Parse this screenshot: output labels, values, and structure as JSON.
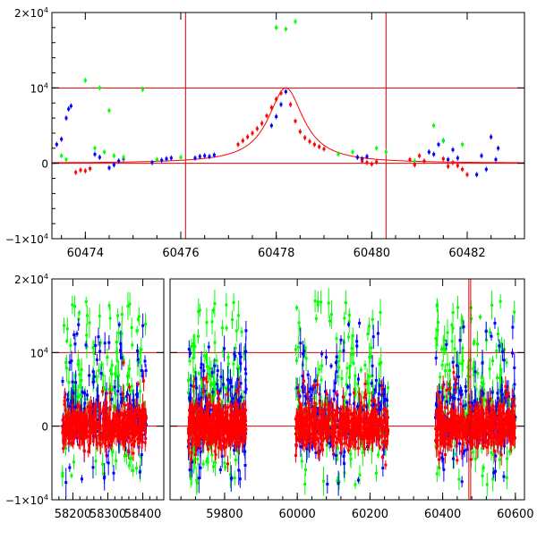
{
  "chart_data": [
    {
      "type": "scatter",
      "title": "",
      "xlabel": "",
      "ylabel": "",
      "xlim": [
        60473.3,
        60483.2
      ],
      "ylim": [
        -10000,
        20000
      ],
      "xtick_values": [
        60474,
        60476,
        60478,
        60480,
        60482
      ],
      "xtick_labels": [
        "60474",
        "60476",
        "60478",
        "60480",
        "60482"
      ],
      "ytick_values": [
        -10000,
        0,
        10000,
        20000
      ],
      "ytick_labels": [
        {
          "base": "−1×10",
          "exp": "4"
        },
        {
          "base": "0",
          "exp": ""
        },
        {
          "base": "10",
          "exp": "4"
        },
        {
          "base": "2×10",
          "exp": "4"
        }
      ],
      "hlines": [
        0,
        10000
      ],
      "vlines": [
        60476.1,
        60480.3
      ],
      "model_curve": {
        "peak_x": 60478.2,
        "peak_y": 10000,
        "halfwidth_days": 0.45,
        "color": "#ff0000"
      },
      "series": [
        {
          "color": "#0000ff",
          "points": [
            [
              60473.4,
              2500
            ],
            [
              60473.5,
              3200
            ],
            [
              60473.6,
              6000
            ],
            [
              60473.65,
              7200
            ],
            [
              60473.7,
              7600
            ],
            [
              60474.2,
              1200
            ],
            [
              60474.3,
              800
            ],
            [
              60474.5,
              -600
            ],
            [
              60474.6,
              -200
            ],
            [
              60474.7,
              300
            ],
            [
              60474.8,
              600
            ],
            [
              60475.4,
              100
            ],
            [
              60475.6,
              400
            ],
            [
              60475.7,
              600
            ],
            [
              60475.8,
              700
            ],
            [
              60476.3,
              700
            ],
            [
              60476.4,
              900
            ],
            [
              60476.5,
              1000
            ],
            [
              60476.6,
              900
            ],
            [
              60476.7,
              1100
            ],
            [
              60477.9,
              5000
            ],
            [
              60478.0,
              6200
            ],
            [
              60478.1,
              7800
            ],
            [
              60478.2,
              9500
            ],
            [
              60479.7,
              800
            ],
            [
              60479.8,
              600
            ],
            [
              60479.9,
              900
            ],
            [
              60481.2,
              1500
            ],
            [
              60481.3,
              1200
            ],
            [
              60481.4,
              2500
            ],
            [
              60481.5,
              3000
            ],
            [
              60481.6,
              500
            ],
            [
              60481.7,
              1800
            ],
            [
              60481.8,
              700
            ],
            [
              60482.2,
              -1500
            ],
            [
              60482.3,
              1000
            ],
            [
              60482.4,
              -800
            ],
            [
              60482.5,
              3500
            ],
            [
              60482.6,
              500
            ],
            [
              60482.65,
              2000
            ]
          ]
        },
        {
          "color": "#00ff00",
          "points": [
            [
              60473.5,
              1000
            ],
            [
              60473.6,
              500
            ],
            [
              60474.0,
              11000
            ],
            [
              60474.2,
              2000
            ],
            [
              60474.3,
              10000
            ],
            [
              60474.4,
              1500
            ],
            [
              60474.5,
              7000
            ],
            [
              60474.6,
              1000
            ],
            [
              60474.8,
              800
            ],
            [
              60475.2,
              9800
            ],
            [
              60475.5,
              500
            ],
            [
              60476.0,
              800
            ],
            [
              60478.0,
              18000
            ],
            [
              60478.2,
              17800
            ],
            [
              60478.4,
              18800
            ],
            [
              60479.3,
              1200
            ],
            [
              60479.6,
              1500
            ],
            [
              60480.1,
              2000
            ],
            [
              60480.3,
              1500
            ],
            [
              60480.9,
              300
            ],
            [
              60481.3,
              5000
            ],
            [
              60481.5,
              3000
            ],
            [
              60481.9,
              2500
            ]
          ]
        },
        {
          "color": "#ff0000",
          "points": [
            [
              60473.8,
              -1200
            ],
            [
              60473.9,
              -900
            ],
            [
              60474.0,
              -1000
            ],
            [
              60474.1,
              -700
            ],
            [
              60477.2,
              2500
            ],
            [
              60477.3,
              3000
            ],
            [
              60477.4,
              3500
            ],
            [
              60477.5,
              4000
            ],
            [
              60477.6,
              4600
            ],
            [
              60477.7,
              5300
            ],
            [
              60477.8,
              6300
            ],
            [
              60477.9,
              7400
            ],
            [
              60478.0,
              8500
            ],
            [
              60478.1,
              9300
            ],
            [
              60478.3,
              7800
            ],
            [
              60478.4,
              5600
            ],
            [
              60478.5,
              4200
            ],
            [
              60478.6,
              3400
            ],
            [
              60478.7,
              2900
            ],
            [
              60478.8,
              2500
            ],
            [
              60478.9,
              2200
            ],
            [
              60479.0,
              1900
            ],
            [
              60479.8,
              300
            ],
            [
              60479.9,
              100
            ],
            [
              60480.0,
              -100
            ],
            [
              60480.1,
              200
            ],
            [
              60480.8,
              500
            ],
            [
              60480.9,
              -200
            ],
            [
              60481.0,
              1000
            ],
            [
              60481.1,
              300
            ],
            [
              60481.5,
              600
            ],
            [
              60481.6,
              -400
            ],
            [
              60481.7,
              100
            ],
            [
              60481.8,
              -300
            ],
            [
              60481.9,
              -800
            ],
            [
              60482.0,
              -1500
            ]
          ]
        }
      ]
    },
    {
      "type": "scatter",
      "title": "",
      "xlabel": "",
      "ylabel": "",
      "ylim": [
        -10000,
        20000
      ],
      "ytick_values": [
        -10000,
        0,
        10000,
        20000
      ],
      "ytick_labels": [
        {
          "base": "−1×10",
          "exp": "4"
        },
        {
          "base": "0",
          "exp": ""
        },
        {
          "base": "10",
          "exp": "4"
        },
        {
          "base": "2×10",
          "exp": "4"
        }
      ],
      "hlines": [
        0,
        10000
      ],
      "panels": [
        {
          "xlim": [
            58140,
            58460
          ],
          "xtick_values": [
            58200,
            58300,
            58400
          ],
          "xtick_labels": [
            "58200",
            "58300",
            "58400"
          ]
        },
        {
          "xlim": [
            59650,
            60625
          ],
          "xtick_values": [
            59800,
            60000,
            60200,
            60400,
            60600
          ],
          "xtick_labels": [
            "59800",
            "60000",
            "60200",
            "60400",
            "60600"
          ]
        }
      ],
      "gaps": [
        [
          58420,
          59690
        ],
        [
          59870,
          59985
        ],
        [
          60255,
          60375
        ]
      ],
      "season_ranges": [
        [
          58170,
          58410
        ],
        [
          59700,
          59860
        ],
        [
          59995,
          60250
        ],
        [
          60380,
          60600
        ]
      ],
      "series_colors": [
        "#00ff00",
        "#0000ff",
        "#ff0000"
      ],
      "vlines": [
        60472,
        60477
      ]
    }
  ]
}
